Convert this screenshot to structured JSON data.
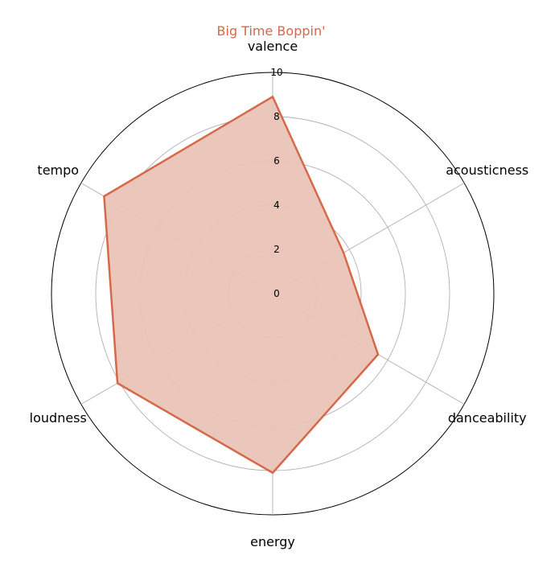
{
  "chart_data": {
    "type": "radar",
    "title": "Big Time Boppin'",
    "axes": [
      "valence",
      "acousticness",
      "danceability",
      "energy",
      "loudness",
      "tempo"
    ],
    "series": [
      {
        "name": "",
        "values": [
          8.9,
          3.7,
          5.5,
          8.1,
          8.1,
          8.8
        ]
      }
    ],
    "rlim": [
      0,
      10
    ],
    "r_ticks": [
      "0",
      "2",
      "4",
      "6",
      "8",
      "10"
    ],
    "grid": true,
    "colors": {
      "series": "#d5694a",
      "fill": "#eac3b6",
      "grid": "#b0b0b0",
      "outer": "#000000"
    }
  }
}
